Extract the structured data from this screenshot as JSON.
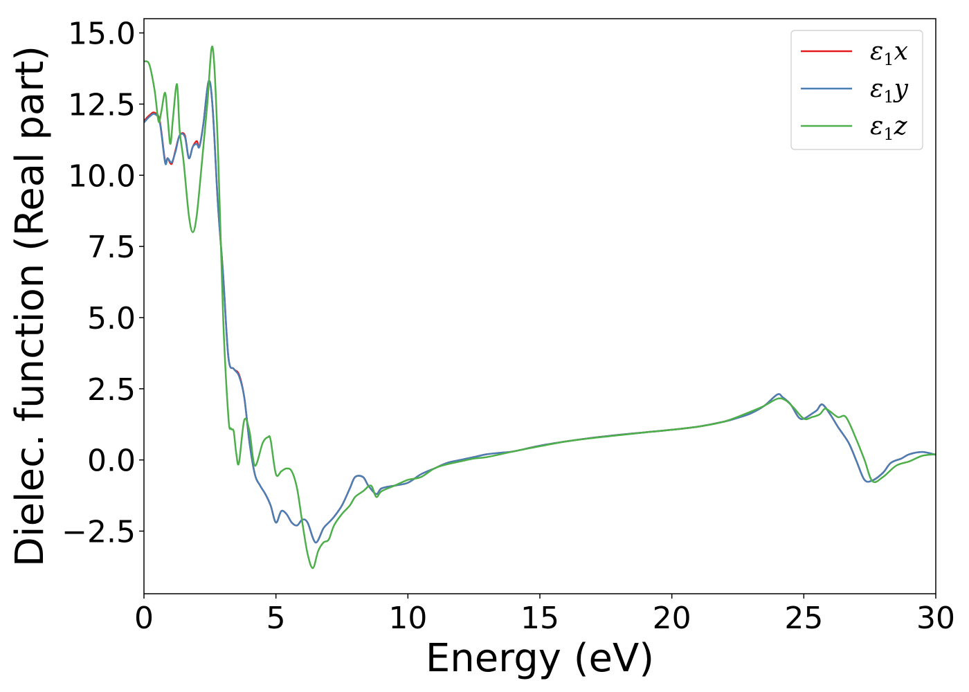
{
  "chart_data": {
    "type": "line",
    "title": "",
    "xlabel": "Energy (eV)",
    "ylabel": "Dielec. function (Real part)",
    "xlim": [
      0,
      30
    ],
    "ylim": [
      -4.7,
      15.5
    ],
    "xticks": [
      0,
      5,
      10,
      15,
      20,
      25,
      30
    ],
    "xtick_labels": [
      "0",
      "5",
      "10",
      "15",
      "20",
      "25",
      "30"
    ],
    "yticks": [
      -2.5,
      0.0,
      2.5,
      5.0,
      7.5,
      10.0,
      12.5,
      15.0
    ],
    "ytick_labels": [
      "−2.5",
      "0.0",
      "2.5",
      "5.0",
      "7.5",
      "10.0",
      "12.5",
      "15.0"
    ],
    "grid": false,
    "legend_position": "top-right",
    "series": [
      {
        "name": "ε₁x",
        "legend_main": "ε",
        "legend_sub": "1",
        "legend_var": "x",
        "color": "#e41a1c",
        "x": [
          0,
          0.2,
          0.4,
          0.6,
          0.8,
          0.9,
          1.05,
          1.2,
          1.35,
          1.55,
          1.7,
          1.85,
          2.0,
          2.1,
          2.25,
          2.45,
          2.6,
          2.8,
          3.0,
          3.2,
          3.4,
          3.6,
          3.8,
          4.0,
          4.2,
          4.4,
          4.6,
          4.8,
          5.0,
          5.2,
          5.4,
          5.6,
          5.8,
          6.0,
          6.2,
          6.5,
          6.8,
          7.0,
          7.2,
          7.5,
          7.8,
          8.0,
          8.3,
          8.5,
          8.8,
          9.0,
          9.5,
          10.0,
          10.5,
          11.0,
          11.5,
          12.0,
          12.5,
          13.0,
          13.5,
          14.0,
          15.0,
          16.0,
          17.0,
          18.0,
          19.0,
          20.0,
          21.0,
          22.0,
          22.5,
          23.0,
          23.5,
          24.0,
          24.2,
          24.5,
          24.8,
          25.0,
          25.3,
          25.5,
          25.7,
          26.0,
          26.3,
          26.7,
          27.0,
          27.3,
          27.6,
          28.0,
          28.3,
          28.7,
          29.0,
          29.5,
          30.0
        ],
        "y": [
          11.9,
          12.1,
          12.2,
          11.9,
          10.5,
          10.6,
          10.4,
          10.9,
          11.4,
          11.4,
          10.6,
          11.0,
          11.2,
          11.0,
          11.8,
          13.3,
          12.4,
          9.0,
          6.5,
          3.6,
          3.2,
          3.0,
          2.2,
          0.6,
          -0.5,
          -0.9,
          -1.2,
          -1.6,
          -2.2,
          -1.8,
          -1.9,
          -2.2,
          -2.3,
          -2.1,
          -2.2,
          -2.9,
          -2.4,
          -2.2,
          -2.0,
          -1.6,
          -1.0,
          -0.6,
          -0.6,
          -0.9,
          -1.2,
          -1.0,
          -0.9,
          -0.8,
          -0.5,
          -0.3,
          -0.1,
          0.0,
          0.1,
          0.2,
          0.25,
          0.3,
          0.5,
          0.65,
          0.78,
          0.88,
          0.97,
          1.06,
          1.17,
          1.35,
          1.48,
          1.64,
          1.9,
          2.3,
          2.2,
          1.95,
          1.5,
          1.45,
          1.62,
          1.75,
          1.95,
          1.6,
          1.15,
          0.6,
          -0.05,
          -0.7,
          -0.72,
          -0.45,
          -0.1,
          0.05,
          0.2,
          0.28,
          0.18
        ]
      },
      {
        "name": "ε₁y",
        "legend_main": "ε",
        "legend_sub": "1",
        "legend_var": "y",
        "color": "#4a7fb5",
        "x": [
          0,
          0.2,
          0.4,
          0.6,
          0.8,
          0.9,
          1.05,
          1.2,
          1.35,
          1.55,
          1.7,
          1.85,
          2.0,
          2.1,
          2.25,
          2.45,
          2.6,
          2.8,
          3.0,
          3.2,
          3.4,
          3.6,
          3.8,
          4.0,
          4.2,
          4.4,
          4.6,
          4.8,
          5.0,
          5.2,
          5.4,
          5.6,
          5.8,
          6.0,
          6.2,
          6.5,
          6.8,
          7.0,
          7.2,
          7.5,
          7.8,
          8.0,
          8.3,
          8.5,
          8.8,
          9.0,
          9.5,
          10.0,
          10.5,
          11.0,
          11.5,
          12.0,
          12.5,
          13.0,
          13.5,
          14.0,
          15.0,
          16.0,
          17.0,
          18.0,
          19.0,
          20.0,
          21.0,
          22.0,
          22.5,
          23.0,
          23.5,
          24.0,
          24.2,
          24.5,
          24.8,
          25.0,
          25.3,
          25.5,
          25.7,
          26.0,
          26.3,
          26.7,
          27.0,
          27.3,
          27.6,
          28.0,
          28.3,
          28.7,
          29.0,
          29.5,
          30.0
        ],
        "y": [
          11.85,
          12.05,
          12.15,
          11.85,
          10.45,
          10.6,
          10.45,
          10.85,
          11.4,
          11.35,
          10.6,
          11.0,
          11.1,
          11.0,
          11.8,
          13.3,
          12.4,
          9.0,
          6.5,
          3.6,
          3.2,
          2.95,
          2.2,
          0.6,
          -0.5,
          -0.9,
          -1.2,
          -1.6,
          -2.2,
          -1.8,
          -1.9,
          -2.2,
          -2.3,
          -2.1,
          -2.2,
          -2.9,
          -2.4,
          -2.2,
          -2.0,
          -1.6,
          -1.0,
          -0.6,
          -0.6,
          -0.9,
          -1.2,
          -1.0,
          -0.9,
          -0.8,
          -0.5,
          -0.3,
          -0.1,
          0.0,
          0.1,
          0.2,
          0.25,
          0.3,
          0.5,
          0.65,
          0.78,
          0.88,
          0.97,
          1.06,
          1.17,
          1.35,
          1.48,
          1.64,
          1.9,
          2.3,
          2.2,
          1.95,
          1.5,
          1.45,
          1.62,
          1.75,
          1.95,
          1.6,
          1.15,
          0.6,
          -0.05,
          -0.7,
          -0.72,
          -0.45,
          -0.1,
          0.05,
          0.2,
          0.28,
          0.18
        ]
      },
      {
        "name": "ε₁z",
        "legend_main": "ε",
        "legend_sub": "1",
        "legend_var": "z",
        "color": "#4daf4a",
        "x": [
          0,
          0.2,
          0.4,
          0.55,
          0.65,
          0.8,
          0.9,
          1.0,
          1.1,
          1.25,
          1.35,
          1.5,
          1.7,
          1.85,
          2.0,
          2.2,
          2.4,
          2.6,
          2.8,
          3.0,
          3.2,
          3.3,
          3.4,
          3.5,
          3.6,
          3.8,
          4.0,
          4.2,
          4.5,
          4.7,
          4.8,
          5.0,
          5.2,
          5.4,
          5.6,
          5.8,
          6.0,
          6.2,
          6.4,
          6.6,
          6.8,
          7.0,
          7.2,
          7.5,
          7.8,
          8.0,
          8.3,
          8.6,
          8.8,
          9.0,
          9.5,
          10.0,
          10.5,
          11.0,
          11.5,
          12.0,
          12.5,
          13.0,
          14.0,
          15.0,
          16.0,
          17.0,
          18.0,
          19.0,
          20.0,
          21.0,
          22.0,
          23.0,
          23.5,
          24.0,
          24.3,
          24.6,
          25.0,
          25.3,
          25.6,
          25.8,
          26.0,
          26.3,
          26.6,
          27.0,
          27.3,
          27.6,
          28.0,
          28.5,
          29.0,
          29.5,
          30.0
        ],
        "y": [
          14.0,
          13.9,
          13.0,
          11.9,
          12.2,
          12.9,
          12.0,
          11.1,
          12.0,
          13.2,
          11.6,
          10.5,
          8.6,
          8.0,
          8.6,
          10.5,
          12.5,
          14.5,
          11.0,
          5.0,
          1.5,
          1.1,
          1.0,
          0.2,
          -0.1,
          1.4,
          1.0,
          -0.2,
          0.6,
          0.8,
          0.7,
          -0.5,
          -0.4,
          -0.3,
          -0.4,
          -1.0,
          -2.2,
          -3.3,
          -3.8,
          -3.2,
          -2.9,
          -2.8,
          -2.3,
          -1.9,
          -1.6,
          -1.3,
          -1.1,
          -0.9,
          -1.3,
          -1.1,
          -0.9,
          -0.7,
          -0.6,
          -0.3,
          -0.15,
          -0.05,
          0.05,
          0.1,
          0.3,
          0.48,
          0.65,
          0.77,
          0.87,
          0.97,
          1.06,
          1.17,
          1.35,
          1.7,
          1.9,
          2.15,
          2.1,
          1.85,
          1.45,
          1.5,
          1.6,
          1.8,
          1.7,
          1.5,
          1.5,
          0.7,
          0.0,
          -0.75,
          -0.6,
          -0.2,
          -0.05,
          0.15,
          0.2
        ]
      }
    ]
  }
}
